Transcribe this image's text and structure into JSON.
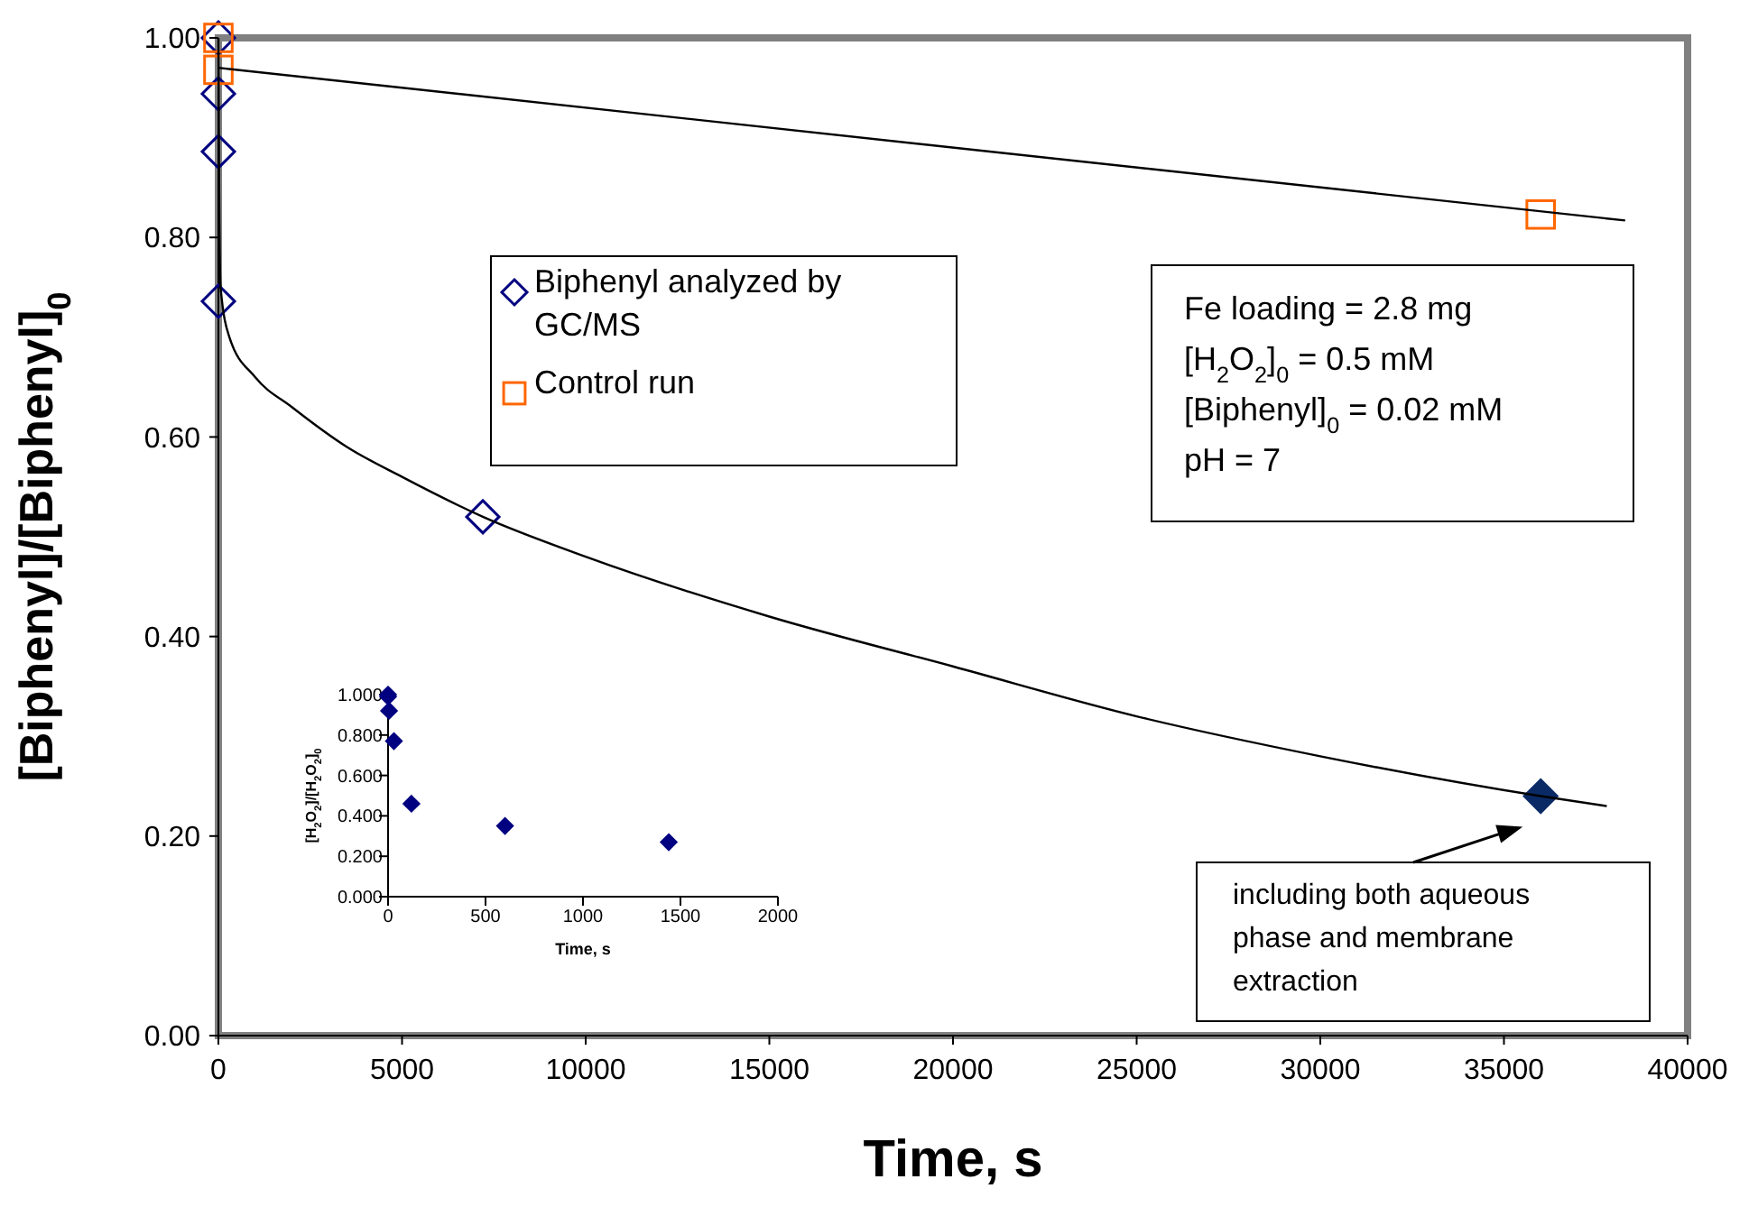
{
  "chart_data": [
    {
      "type": "scatter",
      "xlabel": "Time, s",
      "ylabel": "[Biphenyl]/[Biphenyl]$_{0}$",
      "xlim": [
        0,
        40000
      ],
      "xticks": [
        0,
        5000,
        10000,
        15000,
        20000,
        25000,
        30000,
        35000,
        40000
      ],
      "ylim": [
        0,
        1
      ],
      "yticks": [
        {
          "value": 0,
          "label": "0.00"
        },
        {
          "value": 0.2,
          "label": "0.20"
        },
        {
          "value": 0.4,
          "label": "0.40"
        },
        {
          "value": 0.6,
          "label": "0.60"
        },
        {
          "value": 0.8,
          "label": "0.80"
        },
        {
          "value": 1,
          "label": "1.00"
        }
      ],
      "grid": false,
      "legend": "top left",
      "series": [
        {
          "name": "Biphenyl analyzed by GC/MS",
          "color": "#000080",
          "marker": "diamond",
          "x": [
            0,
            0,
            0,
            0,
            7200
          ],
          "values": [
            1.0,
            0.944,
            0.886,
            0.736,
            0.52
          ]
        },
        {
          "color": "#0a2a66",
          "marker": "diamond",
          "x": [
            36000
          ],
          "values": [
            0.24
          ]
        },
        {
          "name": "Control run",
          "color": "#ff6600",
          "marker": "square",
          "x": [
            0,
            0,
            36000
          ],
          "values": [
            1.0,
            0.968,
            0.823
          ]
        },
        {
          "type": "line",
          "color": "#000000",
          "x": [
            0,
            38300
          ],
          "values": [
            0.97,
            0.817
          ]
        },
        {
          "type": "line",
          "color": "#000000",
          "x": [
            0,
            20,
            60,
            300,
            1000,
            2000,
            3500,
            5000,
            7200,
            10000,
            15000,
            20000,
            25000,
            30000,
            36000,
            37800
          ],
          "values": [
            1.0,
            0.85,
            0.75,
            0.7,
            0.66,
            0.63,
            0.59,
            0.56,
            0.52,
            0.48,
            0.42,
            0.37,
            0.32,
            0.28,
            0.24,
            0.23
          ]
        }
      ],
      "annotations": [
        "Fe loading = 2.8 mg\n[H$_{2}$O$_{2}$]$_{0}$ = 0.5 mM\n[Biphenyl]$_{0}$ = 0.02 mM\npH = 7",
        {
          "text": "including both aqueous\nphase and membrane\nextraction",
          "x": 36000,
          "y": 0.24
        }
      ]
    },
    {
      "type": "scatter",
      "xlabel": "Time, s",
      "ylabel": "[H$_{2}$O$_{2}$]/[H$_{2}$O$_{2}$]$_{0}$",
      "xlim": [
        0,
        2000
      ],
      "xticks": [
        0,
        500,
        1000,
        1500,
        2000
      ],
      "ylim": [
        0,
        1
      ],
      "yticks": [
        {
          "value": 0,
          "label": "0.000"
        },
        {
          "value": 0.2,
          "label": "0.200"
        },
        {
          "value": 0.4,
          "label": "0.400"
        },
        {
          "value": 0.6,
          "label": "0.600"
        },
        {
          "value": 0.8,
          "label": "0.800"
        },
        {
          "value": 1,
          "label": "1.000"
        }
      ],
      "grid": false,
      "legend": false,
      "series": [
        {
          "color": "#000080",
          "marker": "diamond",
          "x": [
            0,
            0,
            5,
            30,
            120,
            600,
            1440
          ],
          "values": [
            1.0,
            0.99,
            0.92,
            0.77,
            0.46,
            0.35,
            0.27
          ]
        }
      ]
    }
  ]
}
